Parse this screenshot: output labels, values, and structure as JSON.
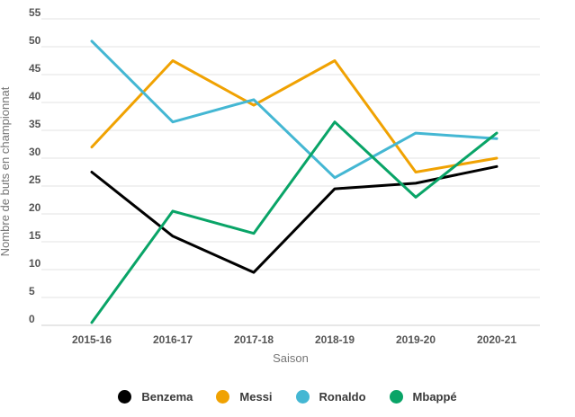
{
  "chart_data": {
    "type": "line",
    "title": "",
    "xlabel": "Saison",
    "ylabel": "Nombre de buts en championnat",
    "categories": [
      "2015-16",
      "2016-17",
      "2017-18",
      "2018-19",
      "2019-20",
      "2020-21"
    ],
    "series": [
      {
        "name": "Benzema",
        "color": "#000000",
        "values": [
          27.5,
          16,
          9.5,
          24.5,
          25.5,
          28.5
        ]
      },
      {
        "name": "Messi",
        "color": "#f0a202",
        "values": [
          32,
          47.5,
          39.5,
          47.5,
          27.5,
          30
        ]
      },
      {
        "name": "Ronaldo",
        "color": "#44b7d3",
        "values": [
          51,
          36.5,
          40.5,
          26.5,
          34.5,
          33.5
        ]
      },
      {
        "name": "Mbappé",
        "color": "#09a467",
        "values": [
          0.5,
          20.5,
          16.5,
          36.5,
          23,
          34.5
        ]
      }
    ],
    "ylim": [
      0,
      55
    ],
    "ytick_step": 5,
    "yticks": [
      0,
      5,
      10,
      15,
      20,
      25,
      30,
      35,
      40,
      45,
      50,
      55
    ],
    "grid": true,
    "legend_position": "bottom",
    "colors": {
      "gridline": "#e3e3e3",
      "baseline": "#cfcfcf",
      "tick_label": "#555555",
      "axis_title": "#757575",
      "legend_label": "#3a3a3a",
      "background": "#ffffff"
    }
  }
}
